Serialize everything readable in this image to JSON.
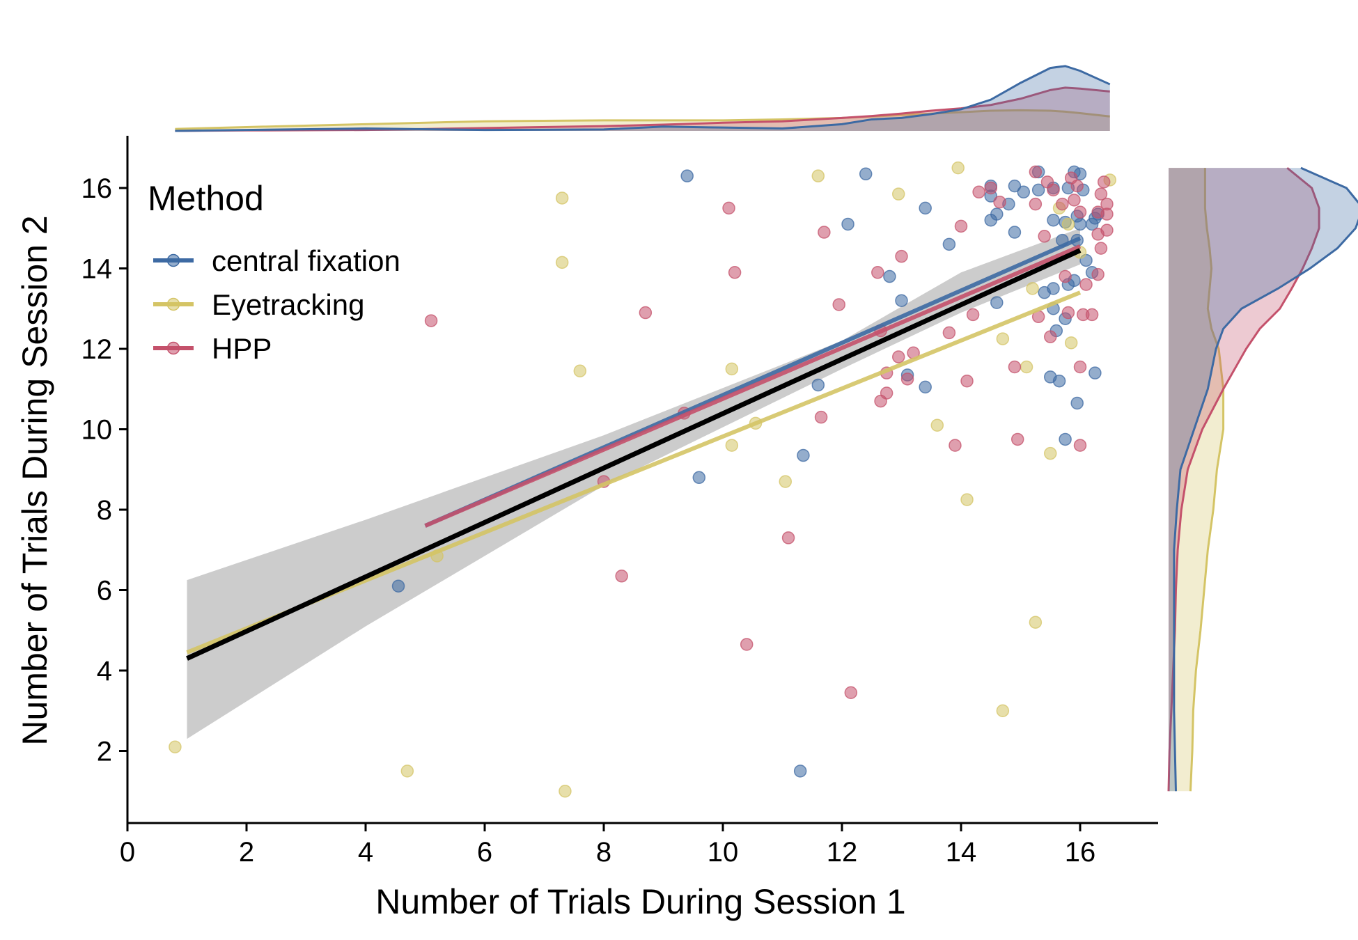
{
  "chart_data": {
    "type": "scatter",
    "xlabel": "Number of Trials During Session 1",
    "ylabel": "Number of Trials During Session 2",
    "xlim": [
      0,
      17.3
    ],
    "ylim": [
      0.2,
      17.3
    ],
    "xticks": [
      0,
      2,
      4,
      6,
      8,
      10,
      12,
      14,
      16
    ],
    "yticks": [
      2,
      4,
      6,
      8,
      10,
      12,
      14,
      16
    ],
    "grid": false,
    "legend": {
      "title": "Method",
      "placement": "top-left"
    },
    "series": [
      {
        "name": "central fixation",
        "color": "#3d6aa3",
        "points": [
          [
            9.4,
            16.3
          ],
          [
            12.4,
            16.35
          ],
          [
            15.3,
            16.4
          ],
          [
            15.9,
            16.4
          ],
          [
            16.0,
            16.35
          ],
          [
            14.5,
            16.05
          ],
          [
            14.9,
            16.05
          ],
          [
            15.3,
            15.95
          ],
          [
            15.55,
            16.0
          ],
          [
            15.8,
            16.0
          ],
          [
            16.05,
            15.95
          ],
          [
            15.05,
            15.9
          ],
          [
            14.5,
            15.8
          ],
          [
            14.8,
            15.6
          ],
          [
            13.4,
            15.5
          ],
          [
            14.6,
            15.35
          ],
          [
            14.5,
            15.2
          ],
          [
            15.55,
            15.2
          ],
          [
            15.75,
            15.15
          ],
          [
            16.0,
            15.1
          ],
          [
            16.2,
            15.1
          ],
          [
            16.25,
            15.25
          ],
          [
            16.3,
            15.35
          ],
          [
            15.95,
            15.3
          ],
          [
            12.1,
            15.1
          ],
          [
            14.9,
            14.9
          ],
          [
            15.7,
            14.7
          ],
          [
            15.95,
            14.7
          ],
          [
            16.1,
            14.2
          ],
          [
            16.2,
            13.9
          ],
          [
            13.8,
            14.6
          ],
          [
            12.8,
            13.8
          ],
          [
            15.8,
            13.6
          ],
          [
            15.9,
            13.7
          ],
          [
            15.4,
            13.4
          ],
          [
            15.55,
            13.5
          ],
          [
            13.0,
            13.2
          ],
          [
            14.6,
            13.15
          ],
          [
            15.55,
            13.0
          ],
          [
            15.75,
            12.75
          ],
          [
            15.6,
            12.45
          ],
          [
            11.6,
            11.1
          ],
          [
            13.1,
            11.35
          ],
          [
            13.4,
            11.05
          ],
          [
            15.5,
            11.3
          ],
          [
            15.65,
            11.2
          ],
          [
            16.25,
            11.4
          ],
          [
            15.95,
            10.65
          ],
          [
            15.75,
            9.75
          ],
          [
            11.35,
            9.35
          ],
          [
            9.6,
            8.8
          ],
          [
            4.55,
            6.1
          ],
          [
            11.3,
            1.5
          ]
        ]
      },
      {
        "name": "Eyetracking",
        "color": "#d4c465",
        "points": [
          [
            0.8,
            2.1
          ],
          [
            4.7,
            1.5
          ],
          [
            7.35,
            1.0
          ],
          [
            5.2,
            6.85
          ],
          [
            7.6,
            11.45
          ],
          [
            7.3,
            14.15
          ],
          [
            7.3,
            15.75
          ],
          [
            10.15,
            11.5
          ],
          [
            10.15,
            9.6
          ],
          [
            10.55,
            10.15
          ],
          [
            11.05,
            8.7
          ],
          [
            11.6,
            16.3
          ],
          [
            12.95,
            15.85
          ],
          [
            13.95,
            16.5
          ],
          [
            14.1,
            8.25
          ],
          [
            14.7,
            12.25
          ],
          [
            14.7,
            3.0
          ],
          [
            15.2,
            13.5
          ],
          [
            15.25,
            5.2
          ],
          [
            15.5,
            9.4
          ],
          [
            15.65,
            15.5
          ],
          [
            15.85,
            12.15
          ],
          [
            16.5,
            16.2
          ],
          [
            15.1,
            11.55
          ],
          [
            15.8,
            15.1
          ],
          [
            16.0,
            14.4
          ],
          [
            13.6,
            10.1
          ]
        ]
      },
      {
        "name": "HPP",
        "color": "#c4516b",
        "points": [
          [
            5.1,
            12.7
          ],
          [
            8.3,
            6.35
          ],
          [
            8.7,
            12.9
          ],
          [
            8.0,
            8.7
          ],
          [
            9.35,
            10.4
          ],
          [
            10.1,
            15.5
          ],
          [
            10.2,
            13.9
          ],
          [
            10.4,
            4.65
          ],
          [
            11.1,
            7.3
          ],
          [
            11.65,
            10.3
          ],
          [
            11.7,
            14.9
          ],
          [
            11.95,
            13.1
          ],
          [
            12.15,
            3.45
          ],
          [
            12.6,
            13.9
          ],
          [
            12.65,
            12.45
          ],
          [
            12.65,
            10.7
          ],
          [
            12.75,
            10.9
          ],
          [
            12.75,
            11.4
          ],
          [
            12.95,
            11.8
          ],
          [
            13.0,
            14.3
          ],
          [
            13.1,
            11.25
          ],
          [
            13.2,
            11.9
          ],
          [
            13.8,
            12.4
          ],
          [
            13.9,
            9.6
          ],
          [
            14.0,
            15.05
          ],
          [
            14.1,
            11.2
          ],
          [
            14.2,
            12.85
          ],
          [
            14.3,
            15.9
          ],
          [
            14.5,
            16.0
          ],
          [
            14.65,
            15.65
          ],
          [
            14.9,
            11.55
          ],
          [
            14.95,
            9.75
          ],
          [
            15.25,
            16.4
          ],
          [
            15.25,
            15.6
          ],
          [
            15.3,
            12.8
          ],
          [
            15.4,
            14.8
          ],
          [
            15.45,
            16.15
          ],
          [
            15.5,
            12.3
          ],
          [
            15.55,
            15.95
          ],
          [
            15.7,
            15.6
          ],
          [
            15.75,
            13.8
          ],
          [
            15.8,
            12.9
          ],
          [
            15.85,
            16.25
          ],
          [
            15.9,
            15.7
          ],
          [
            15.95,
            16.05
          ],
          [
            16.0,
            15.4
          ],
          [
            16.0,
            11.55
          ],
          [
            16.0,
            9.6
          ],
          [
            16.05,
            12.85
          ],
          [
            16.1,
            13.6
          ],
          [
            16.2,
            12.85
          ],
          [
            16.3,
            13.85
          ],
          [
            16.3,
            14.85
          ],
          [
            16.3,
            15.4
          ],
          [
            16.35,
            15.85
          ],
          [
            16.35,
            14.5
          ],
          [
            16.4,
            16.15
          ],
          [
            16.45,
            15.6
          ],
          [
            16.45,
            15.35
          ],
          [
            16.45,
            14.95
          ]
        ]
      }
    ],
    "regression_lines": [
      {
        "name": "central fixation",
        "color": "#3d6aa3",
        "x": [
          5.0,
          16.0
        ],
        "y": [
          7.6,
          14.75
        ]
      },
      {
        "name": "Eyetracking",
        "color": "#d4c465",
        "x": [
          1.0,
          16.0
        ],
        "y": [
          4.45,
          13.4
        ]
      },
      {
        "name": "HPP",
        "color": "#c4516b",
        "x": [
          5.0,
          16.0
        ],
        "y": [
          7.6,
          14.55
        ]
      },
      {
        "name": "",
        "color": "#000000",
        "x": [
          1.0,
          16.0
        ],
        "y": [
          4.3,
          14.45
        ]
      }
    ],
    "confidence_band": {
      "color": "#cccccc",
      "x": [
        1,
        4,
        8,
        12,
        14,
        16
      ],
      "lower": [
        2.3,
        5.1,
        8.6,
        11.5,
        12.9,
        14.1
      ],
      "upper": [
        6.25,
        7.75,
        9.85,
        12.2,
        13.9,
        15.0
      ]
    },
    "marginal_x": {
      "type": "kde",
      "x": [
        0.8,
        2,
        4,
        6,
        8,
        9,
        10,
        11,
        12,
        12.5,
        13,
        13.5,
        14,
        14.5,
        15,
        15.5,
        15.75,
        16,
        16.5
      ],
      "series": {
        "central fixation": [
          0.0,
          0.02,
          0.05,
          0.02,
          0.03,
          0.09,
          0.07,
          0.05,
          0.14,
          0.24,
          0.27,
          0.35,
          0.45,
          0.65,
          1.0,
          1.31,
          1.35,
          1.25,
          0.97
        ],
        "Eyetracking": [
          0.04,
          0.08,
          0.14,
          0.2,
          0.22,
          0.22,
          0.22,
          0.24,
          0.27,
          0.3,
          0.33,
          0.36,
          0.39,
          0.42,
          0.43,
          0.42,
          0.4,
          0.37,
          0.3
        ],
        "HPP": [
          0.0,
          0.01,
          0.02,
          0.06,
          0.1,
          0.13,
          0.17,
          0.2,
          0.27,
          0.31,
          0.36,
          0.42,
          0.47,
          0.54,
          0.67,
          0.85,
          0.9,
          0.88,
          0.82
        ]
      }
    },
    "marginal_y": {
      "type": "kde",
      "y": [
        1.0,
        2,
        3,
        4,
        5,
        6,
        7,
        8,
        9,
        10,
        11,
        12,
        12.5,
        13,
        13.5,
        14,
        14.5,
        15,
        15.5,
        16,
        16.5
      ],
      "series": {
        "central fixation": [
          0.08,
          0.07,
          0.06,
          0.06,
          0.06,
          0.06,
          0.06,
          0.09,
          0.13,
          0.28,
          0.43,
          0.52,
          0.6,
          0.8,
          1.2,
          1.55,
          1.85,
          2.05,
          2.13,
          1.95,
          1.45
        ],
        "Eyetracking": [
          0.24,
          0.26,
          0.27,
          0.3,
          0.35,
          0.39,
          0.43,
          0.49,
          0.53,
          0.6,
          0.6,
          0.55,
          0.47,
          0.43,
          0.45,
          0.47,
          0.45,
          0.42,
          0.4,
          0.4,
          0.4
        ],
        "HPP": [
          0.0,
          0.01,
          0.03,
          0.05,
          0.07,
          0.08,
          0.1,
          0.14,
          0.21,
          0.37,
          0.6,
          0.85,
          1.0,
          1.22,
          1.35,
          1.47,
          1.57,
          1.65,
          1.65,
          1.57,
          1.3
        ]
      }
    }
  }
}
